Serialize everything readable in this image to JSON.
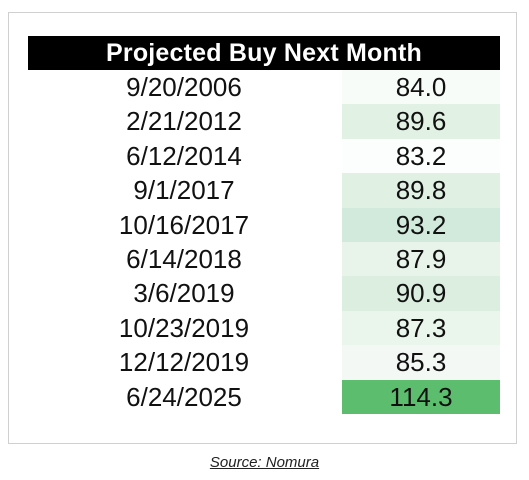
{
  "chart_data": {
    "type": "table",
    "title": "Projected Buy Next Month",
    "rows": [
      {
        "date": "9/20/2006",
        "value": "84.0",
        "color": "#f8fcf8"
      },
      {
        "date": "2/21/2012",
        "value": "89.6",
        "color": "#e1f1e4"
      },
      {
        "date": "6/12/2014",
        "value": "83.2",
        "color": "#fcfdfd"
      },
      {
        "date": "9/1/2017",
        "value": "89.8",
        "color": "#e0f1e3"
      },
      {
        "date": "10/16/2017",
        "value": "93.2",
        "color": "#d1eadb"
      },
      {
        "date": "6/14/2018",
        "value": "87.9",
        "color": "#e8f4ea"
      },
      {
        "date": "3/6/2019",
        "value": "90.9",
        "color": "#dbeee0"
      },
      {
        "date": "10/23/2019",
        "value": "87.3",
        "color": "#eaf5ec"
      },
      {
        "date": "12/12/2019",
        "value": "85.3",
        "color": "#f3f8f5"
      },
      {
        "date": "6/24/2025",
        "value": "114.3",
        "color": "#5cbd6e"
      }
    ]
  },
  "source": "Source: Nomura"
}
